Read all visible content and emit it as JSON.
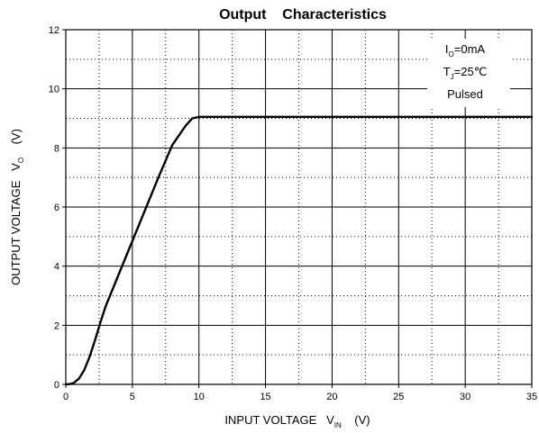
{
  "chart_data": {
    "type": "line",
    "title": "Output    Characteristics",
    "xlabel": {
      "main": "INPUT VOLTAGE   V",
      "sub": "IN",
      "unit": "(V)"
    },
    "ylabel": {
      "main": "OUTPUT VOLTAGE   V",
      "sub": "O",
      "unit": "(V)"
    },
    "xlim": [
      0,
      35
    ],
    "ylim": [
      0,
      12
    ],
    "xticks": [
      0,
      5,
      10,
      15,
      20,
      25,
      30,
      35
    ],
    "yticks": [
      0,
      2,
      4,
      6,
      8,
      10,
      12
    ],
    "x_minor_step": 2.5,
    "y_minor_step": 1,
    "grid": true,
    "annotations": [
      {
        "main": "I",
        "sub": "O",
        "rest": "=0mA"
      },
      {
        "main": "T",
        "sub": "J",
        "rest": "=25℃"
      },
      {
        "main": "Pulsed",
        "sub": "",
        "rest": ""
      }
    ],
    "series": [
      {
        "x": [
          0,
          0.3,
          0.6,
          1.0,
          1.4,
          1.8,
          2.2,
          2.6,
          3.0,
          4.0,
          5.0,
          6.0,
          7.0,
          8.0,
          9.0,
          9.5,
          10.0,
          10.5,
          15,
          20,
          25,
          30,
          35
        ],
        "y": [
          0,
          0.01,
          0.05,
          0.2,
          0.5,
          0.95,
          1.5,
          2.1,
          2.65,
          3.75,
          4.85,
          5.95,
          7.05,
          8.1,
          8.75,
          9.0,
          9.05,
          9.05,
          9.05,
          9.05,
          9.05,
          9.05,
          9.05
        ]
      }
    ]
  }
}
